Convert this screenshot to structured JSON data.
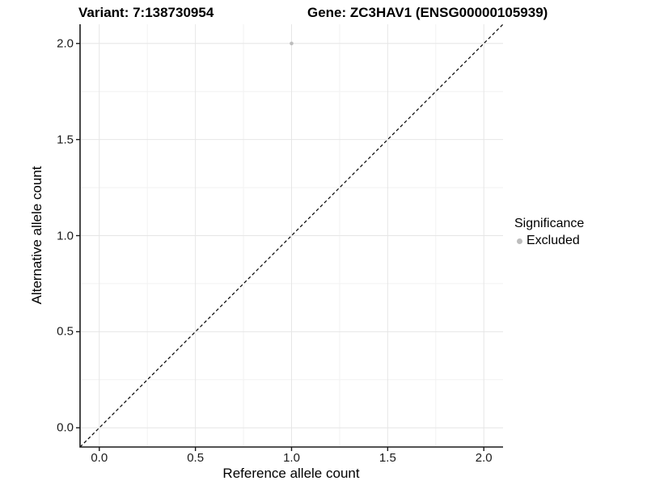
{
  "chart_data": {
    "type": "scatter",
    "titles": {
      "left": "Variant: 7:138730954",
      "right": "Gene: ZC3HAV1 (ENSG00000105939)"
    },
    "xlabel": "Reference allele count",
    "ylabel": "Alternative allele count",
    "xlim": [
      -0.1,
      2.1
    ],
    "ylim": [
      -0.1,
      2.1
    ],
    "x_ticks": [
      0,
      0.5,
      1,
      1.5,
      2
    ],
    "x_tick_labels": [
      "0.0",
      "0.5",
      "1.0",
      "1.5",
      "2.0"
    ],
    "x_minor_ticks": [
      0.25,
      0.75,
      1.25,
      1.75
    ],
    "y_ticks": [
      0,
      0.5,
      1,
      1.5,
      2
    ],
    "y_tick_labels": [
      "0.0",
      "0.5",
      "1.0",
      "1.5",
      "2.0"
    ],
    "y_minor_ticks": [
      0.25,
      0.75,
      1.25,
      1.75
    ],
    "grid": {
      "on": true,
      "major_color": "#e6e6e6",
      "minor_color": "#f2f2f2"
    },
    "reference_line": {
      "type": "identity",
      "equation": "y = x",
      "style": "dashed",
      "color": "#000000"
    },
    "series": [
      {
        "name": "Excluded",
        "color": "#bdbdbd",
        "points": [
          {
            "x": 1.0,
            "y": 2.0
          }
        ]
      }
    ],
    "legend": {
      "title": "Significance",
      "position": "right",
      "entries": [
        {
          "label": "Excluded",
          "color": "#bdbdbd",
          "marker": "circle"
        }
      ]
    },
    "axis_color": "#1a1a1a",
    "background": "#ffffff"
  }
}
